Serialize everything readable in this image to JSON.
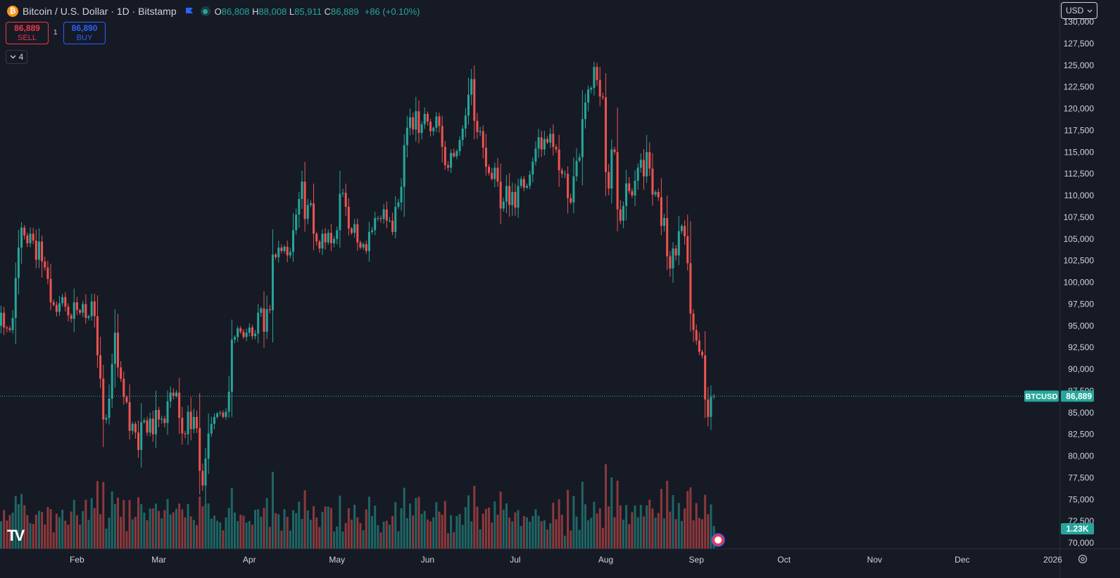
{
  "legend": {
    "coin_glyph": "₿",
    "title": "Bitcoin / U.S. Dollar · 1D · Bitstamp",
    "open_label": "O",
    "open": "86,808",
    "high_label": "H",
    "high": "88,008",
    "low_label": "L",
    "low": "85,911",
    "close_label": "C",
    "close": "86,889",
    "change": "+86 (+0.10%)"
  },
  "trade": {
    "sell_price": "86,889",
    "sell_label": "SELL",
    "spread": "1",
    "buy_price": "86,890",
    "buy_label": "BUY"
  },
  "indicators_toggle": {
    "count": "4"
  },
  "currency_select": {
    "value": "USD"
  },
  "price_tag": {
    "symbol": "BTCUSD",
    "value": "86,889"
  },
  "volume_tag": {
    "value": "1.23K"
  },
  "colors": {
    "up": "#26a69a",
    "down": "#ef5350",
    "background": "#161a25",
    "axis_text": "#d1d4dc"
  },
  "chart_data": {
    "type": "candlestick",
    "symbol": "BTCUSD",
    "timeframe": "1D",
    "y_axis": {
      "ylim": [
        69600,
        131000
      ],
      "ticks": [
        70000,
        72500,
        75000,
        77500,
        80000,
        82500,
        85000,
        87500,
        90000,
        92500,
        95000,
        97500,
        100000,
        102500,
        105000,
        107500,
        110000,
        112500,
        115000,
        117500,
        120000,
        122500,
        125000,
        127500,
        130000
      ],
      "tick_labels": [
        "70,000",
        "72,500",
        "75,000",
        "77,500",
        "80,000",
        "82,500",
        "85,000",
        "87,500",
        "90,000",
        "92,500",
        "95,000",
        "97,500",
        "100,000",
        "102,500",
        "105,000",
        "107,500",
        "110,000",
        "112,500",
        "115,000",
        "117,500",
        "120,000",
        "122,500",
        "125,000",
        "127,500",
        "130,000"
      ]
    },
    "x_axis": {
      "labels": [
        "Feb",
        "Mar",
        "Apr",
        "May",
        "Jun",
        "Jul",
        "Aug",
        "Sep",
        "Oct",
        "Nov",
        "Dec",
        "2026"
      ],
      "label_dates": [
        "2025-02-01",
        "2025-03-01",
        "2025-04-01",
        "2025-05-01",
        "2025-06-01",
        "2025-07-01",
        "2025-08-01",
        "2025-09-01",
        "2025-10-01",
        "2025-11-01",
        "2025-12-01",
        "2026-01-01"
      ],
      "first_bar_date": "2025-01-06"
    },
    "last_price": 86889,
    "close_series": [
      96500,
      94800,
      94700,
      94500,
      95900,
      100500,
      104000,
      106300,
      105400,
      104500,
      105600,
      104800,
      102600,
      104700,
      102400,
      101700,
      100400,
      97700,
      97400,
      96600,
      97600,
      98300,
      97200,
      96200,
      95800,
      97700,
      96800,
      96500,
      97500,
      95900,
      96100,
      97800,
      96100,
      91600,
      88900,
      84200,
      84400,
      86600,
      90600,
      94200,
      90200,
      88900,
      86800,
      86200,
      82900,
      83700,
      82700,
      80700,
      83900,
      84100,
      82700,
      84300,
      82500,
      85300,
      84200,
      84300,
      83800,
      86300,
      87300,
      86900,
      87300,
      84400,
      82600,
      82500,
      85100,
      83100,
      84500,
      83200,
      78300,
      76600,
      79700,
      82600,
      83700,
      84500,
      84900,
      85000,
      84500,
      85100,
      87400,
      93400,
      93700,
      94700,
      94300,
      93700,
      94200,
      94800,
      93800,
      94100,
      96500,
      97000,
      94300,
      96900,
      96800,
      103200,
      102900,
      104000,
      103600,
      104100,
      103100,
      103500,
      106000,
      107800,
      109600,
      111600,
      107300,
      108900,
      109100,
      105600,
      104700,
      103900,
      105600,
      104600,
      105700,
      104500,
      105000,
      106000,
      110200,
      110300,
      108700,
      106200,
      105700,
      106700,
      104600,
      104000,
      104400,
      103600,
      105800,
      106000,
      107400,
      107400,
      107300,
      108400,
      107100,
      107100,
      105800,
      108700,
      109200,
      111000,
      115800,
      117800,
      119000,
      117600,
      119700,
      117200,
      118200,
      119400,
      118500,
      117400,
      117800,
      119100,
      118000,
      115600,
      113500,
      113200,
      114900,
      114500,
      115100,
      116400,
      117700,
      119200,
      121600,
      123400,
      118600,
      117300,
      117400,
      115500,
      113300,
      112600,
      111900,
      113200,
      111600,
      108500,
      109300,
      111100,
      108900,
      110400,
      108600,
      111100,
      111900,
      110900,
      111100,
      112400,
      113900,
      115400,
      116700,
      115300,
      116500,
      116100,
      117100,
      115600,
      115300,
      112900,
      112500,
      112500,
      109700,
      109200,
      112200,
      114000,
      114400,
      118800,
      120700,
      122200,
      122400,
      124800,
      123300,
      121400,
      121300,
      112700,
      110800,
      115300,
      115000,
      108400,
      107100,
      108800,
      111400,
      110500,
      110000,
      111700,
      113200,
      114100,
      112200,
      115000,
      113100,
      110100,
      110400,
      109800,
      106500,
      107400,
      103000,
      101600,
      103900,
      103100,
      105900,
      106500,
      105300,
      102200,
      96400,
      94500,
      93300,
      92000,
      91600,
      86500,
      84500,
      86800,
      86889
    ]
  }
}
